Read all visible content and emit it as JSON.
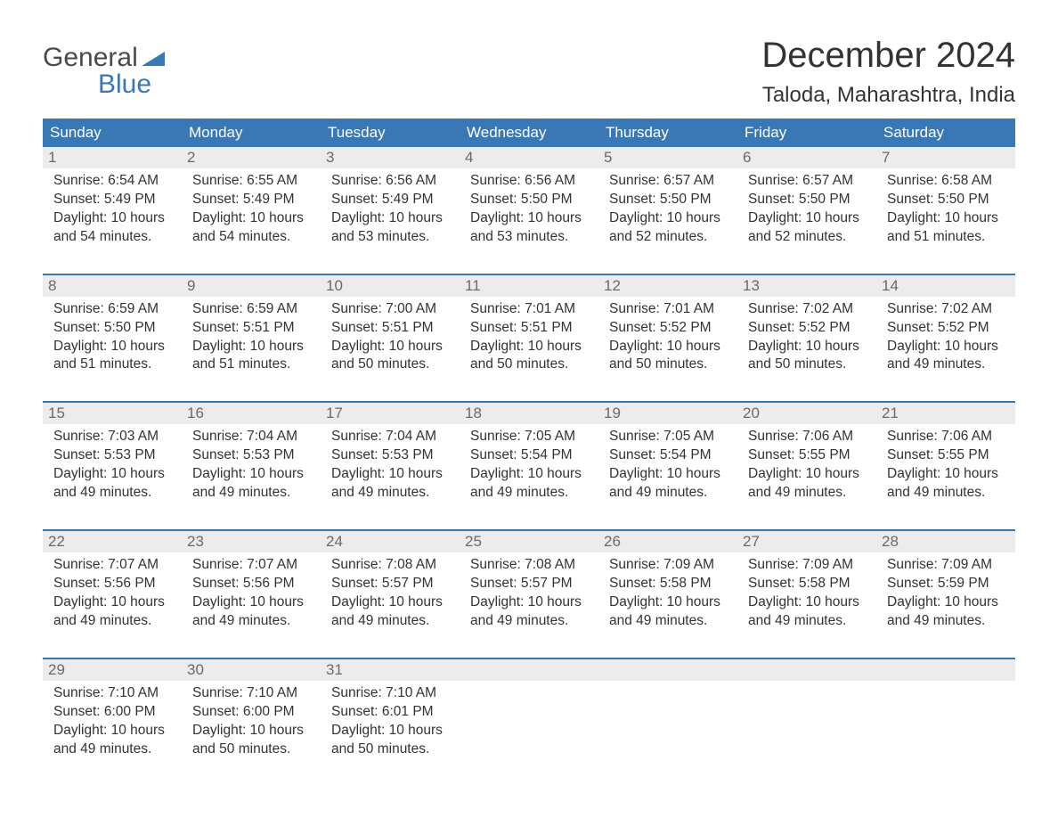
{
  "brand": {
    "top": "General",
    "bottom": "Blue",
    "wedge_color": "#3a78b5",
    "text_gray": "#4a4a4a"
  },
  "title": "December 2024",
  "location": "Taloda, Maharashtra, India",
  "colors": {
    "header_bg": "#3a78b5",
    "header_text": "#ffffff",
    "strip_bg": "#ececec",
    "strip_border": "#3a78b5",
    "daynum_text": "#6a6a6a",
    "body_text": "#333333",
    "page_bg": "#ffffff"
  },
  "typography": {
    "title_fontsize": 40,
    "location_fontsize": 24,
    "weekday_fontsize": 17,
    "daynum_fontsize": 17,
    "body_fontsize": 15.5,
    "font_family": "Arial"
  },
  "weekdays": [
    "Sunday",
    "Monday",
    "Tuesday",
    "Wednesday",
    "Thursday",
    "Friday",
    "Saturday"
  ],
  "layout": {
    "columns": 7,
    "rows": 5,
    "cell_padding": "4px 6px 16px 6px"
  },
  "weeks": [
    [
      {
        "n": "1",
        "sunrise": "Sunrise: 6:54 AM",
        "sunset": "Sunset: 5:49 PM",
        "d1": "Daylight: 10 hours",
        "d2": "and 54 minutes."
      },
      {
        "n": "2",
        "sunrise": "Sunrise: 6:55 AM",
        "sunset": "Sunset: 5:49 PM",
        "d1": "Daylight: 10 hours",
        "d2": "and 54 minutes."
      },
      {
        "n": "3",
        "sunrise": "Sunrise: 6:56 AM",
        "sunset": "Sunset: 5:49 PM",
        "d1": "Daylight: 10 hours",
        "d2": "and 53 minutes."
      },
      {
        "n": "4",
        "sunrise": "Sunrise: 6:56 AM",
        "sunset": "Sunset: 5:50 PM",
        "d1": "Daylight: 10 hours",
        "d2": "and 53 minutes."
      },
      {
        "n": "5",
        "sunrise": "Sunrise: 6:57 AM",
        "sunset": "Sunset: 5:50 PM",
        "d1": "Daylight: 10 hours",
        "d2": "and 52 minutes."
      },
      {
        "n": "6",
        "sunrise": "Sunrise: 6:57 AM",
        "sunset": "Sunset: 5:50 PM",
        "d1": "Daylight: 10 hours",
        "d2": "and 52 minutes."
      },
      {
        "n": "7",
        "sunrise": "Sunrise: 6:58 AM",
        "sunset": "Sunset: 5:50 PM",
        "d1": "Daylight: 10 hours",
        "d2": "and 51 minutes."
      }
    ],
    [
      {
        "n": "8",
        "sunrise": "Sunrise: 6:59 AM",
        "sunset": "Sunset: 5:50 PM",
        "d1": "Daylight: 10 hours",
        "d2": "and 51 minutes."
      },
      {
        "n": "9",
        "sunrise": "Sunrise: 6:59 AM",
        "sunset": "Sunset: 5:51 PM",
        "d1": "Daylight: 10 hours",
        "d2": "and 51 minutes."
      },
      {
        "n": "10",
        "sunrise": "Sunrise: 7:00 AM",
        "sunset": "Sunset: 5:51 PM",
        "d1": "Daylight: 10 hours",
        "d2": "and 50 minutes."
      },
      {
        "n": "11",
        "sunrise": "Sunrise: 7:01 AM",
        "sunset": "Sunset: 5:51 PM",
        "d1": "Daylight: 10 hours",
        "d2": "and 50 minutes."
      },
      {
        "n": "12",
        "sunrise": "Sunrise: 7:01 AM",
        "sunset": "Sunset: 5:52 PM",
        "d1": "Daylight: 10 hours",
        "d2": "and 50 minutes."
      },
      {
        "n": "13",
        "sunrise": "Sunrise: 7:02 AM",
        "sunset": "Sunset: 5:52 PM",
        "d1": "Daylight: 10 hours",
        "d2": "and 50 minutes."
      },
      {
        "n": "14",
        "sunrise": "Sunrise: 7:02 AM",
        "sunset": "Sunset: 5:52 PM",
        "d1": "Daylight: 10 hours",
        "d2": "and 49 minutes."
      }
    ],
    [
      {
        "n": "15",
        "sunrise": "Sunrise: 7:03 AM",
        "sunset": "Sunset: 5:53 PM",
        "d1": "Daylight: 10 hours",
        "d2": "and 49 minutes."
      },
      {
        "n": "16",
        "sunrise": "Sunrise: 7:04 AM",
        "sunset": "Sunset: 5:53 PM",
        "d1": "Daylight: 10 hours",
        "d2": "and 49 minutes."
      },
      {
        "n": "17",
        "sunrise": "Sunrise: 7:04 AM",
        "sunset": "Sunset: 5:53 PM",
        "d1": "Daylight: 10 hours",
        "d2": "and 49 minutes."
      },
      {
        "n": "18",
        "sunrise": "Sunrise: 7:05 AM",
        "sunset": "Sunset: 5:54 PM",
        "d1": "Daylight: 10 hours",
        "d2": "and 49 minutes."
      },
      {
        "n": "19",
        "sunrise": "Sunrise: 7:05 AM",
        "sunset": "Sunset: 5:54 PM",
        "d1": "Daylight: 10 hours",
        "d2": "and 49 minutes."
      },
      {
        "n": "20",
        "sunrise": "Sunrise: 7:06 AM",
        "sunset": "Sunset: 5:55 PM",
        "d1": "Daylight: 10 hours",
        "d2": "and 49 minutes."
      },
      {
        "n": "21",
        "sunrise": "Sunrise: 7:06 AM",
        "sunset": "Sunset: 5:55 PM",
        "d1": "Daylight: 10 hours",
        "d2": "and 49 minutes."
      }
    ],
    [
      {
        "n": "22",
        "sunrise": "Sunrise: 7:07 AM",
        "sunset": "Sunset: 5:56 PM",
        "d1": "Daylight: 10 hours",
        "d2": "and 49 minutes."
      },
      {
        "n": "23",
        "sunrise": "Sunrise: 7:07 AM",
        "sunset": "Sunset: 5:56 PM",
        "d1": "Daylight: 10 hours",
        "d2": "and 49 minutes."
      },
      {
        "n": "24",
        "sunrise": "Sunrise: 7:08 AM",
        "sunset": "Sunset: 5:57 PM",
        "d1": "Daylight: 10 hours",
        "d2": "and 49 minutes."
      },
      {
        "n": "25",
        "sunrise": "Sunrise: 7:08 AM",
        "sunset": "Sunset: 5:57 PM",
        "d1": "Daylight: 10 hours",
        "d2": "and 49 minutes."
      },
      {
        "n": "26",
        "sunrise": "Sunrise: 7:09 AM",
        "sunset": "Sunset: 5:58 PM",
        "d1": "Daylight: 10 hours",
        "d2": "and 49 minutes."
      },
      {
        "n": "27",
        "sunrise": "Sunrise: 7:09 AM",
        "sunset": "Sunset: 5:58 PM",
        "d1": "Daylight: 10 hours",
        "d2": "and 49 minutes."
      },
      {
        "n": "28",
        "sunrise": "Sunrise: 7:09 AM",
        "sunset": "Sunset: 5:59 PM",
        "d1": "Daylight: 10 hours",
        "d2": "and 49 minutes."
      }
    ],
    [
      {
        "n": "29",
        "sunrise": "Sunrise: 7:10 AM",
        "sunset": "Sunset: 6:00 PM",
        "d1": "Daylight: 10 hours",
        "d2": "and 49 minutes."
      },
      {
        "n": "30",
        "sunrise": "Sunrise: 7:10 AM",
        "sunset": "Sunset: 6:00 PM",
        "d1": "Daylight: 10 hours",
        "d2": "and 50 minutes."
      },
      {
        "n": "31",
        "sunrise": "Sunrise: 7:10 AM",
        "sunset": "Sunset: 6:01 PM",
        "d1": "Daylight: 10 hours",
        "d2": "and 50 minutes."
      },
      null,
      null,
      null,
      null
    ]
  ]
}
